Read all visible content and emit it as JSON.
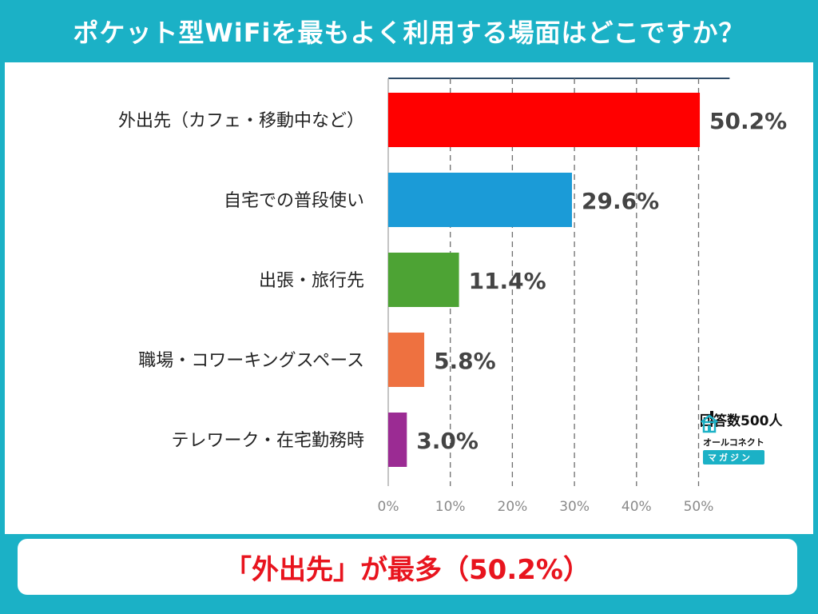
{
  "page": {
    "title": "ポケット型WiFiを最もよく利用する場面はどこですか？",
    "respondents": "回答数500人",
    "brand_top": "オールコネクト",
    "brand_bottom": "マガジン",
    "summary": "「外出先」が最多（50.2%）",
    "colors": {
      "background": "#1bb1c6",
      "summary_text": "#e8141e"
    }
  },
  "chart_data": {
    "type": "bar",
    "orientation": "horizontal",
    "title": "ポケット型WiFiを最もよく利用する場面はどこですか？",
    "categories": [
      "外出先（カフェ・移動中など）",
      "自宅での普段使い",
      "出張・旅行先",
      "職場・コワーキングスペース",
      "テレワーク・在宅勤務時"
    ],
    "values": [
      50.2,
      29.6,
      11.4,
      5.8,
      3.0
    ],
    "value_labels": [
      "50.2%",
      "29.6%",
      "11.4%",
      "5.8%",
      "3.0%"
    ],
    "colors": [
      "#ff0000",
      "#1b9bd7",
      "#4da334",
      "#ee7140",
      "#9b2b93"
    ],
    "xlim": [
      0,
      55
    ],
    "xticks": [
      0,
      10,
      20,
      30,
      40,
      50
    ],
    "xtick_labels": [
      "0%",
      "10%",
      "20%",
      "30%",
      "40%",
      "50%"
    ],
    "grid": "vertical-dashed",
    "legend": "none"
  }
}
